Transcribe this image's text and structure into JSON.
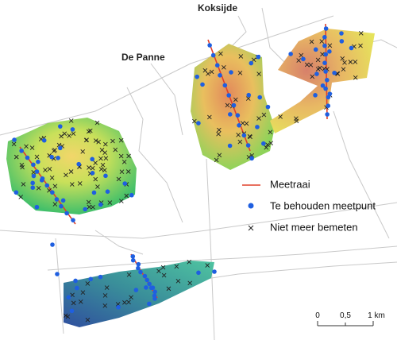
{
  "places": {
    "koksijde": "Koksijde",
    "de_panne": "De Panne"
  },
  "legend": {
    "items": [
      "Meetraai",
      "Te behouden meetpunt",
      "Niet meer bemeten"
    ]
  },
  "scale_bar": {
    "ticks": [
      "0",
      "0,5",
      "1 km"
    ]
  }
}
